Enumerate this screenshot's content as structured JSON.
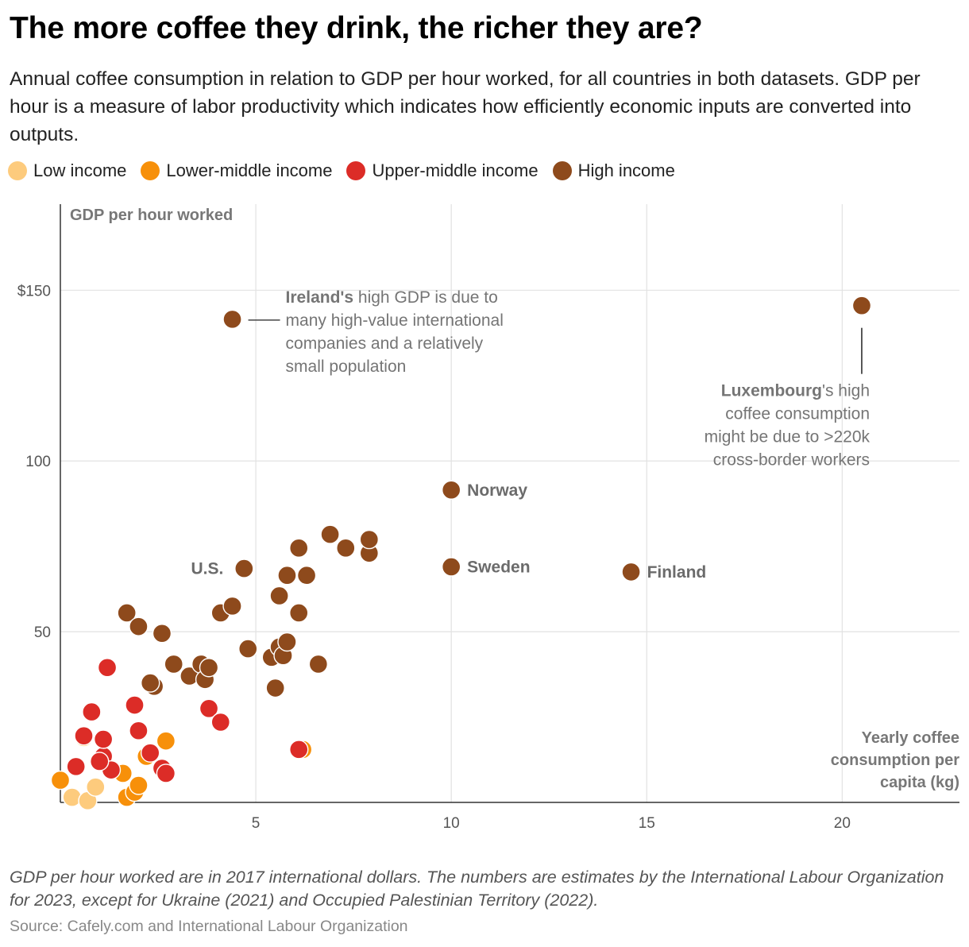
{
  "header": {
    "title": "The more coffee they drink, the richer they are?",
    "subtitle": "Annual coffee consumption in relation to GDP per hour worked, for all countries in both datasets. GDP per hour is a measure of labor productivity which indicates how efficiently economic inputs are converted into outputs."
  },
  "legend": [
    {
      "key": "low",
      "label": "Low income",
      "color": "#fdcb7d"
    },
    {
      "key": "lower_middle",
      "label": "Lower-middle income",
      "color": "#f7900a"
    },
    {
      "key": "upper_middle",
      "label": "Upper-middle income",
      "color": "#dc2c27"
    },
    {
      "key": "high",
      "label": "High income",
      "color": "#8e4a1c"
    }
  ],
  "chart_data": {
    "type": "scatter",
    "title": "The more coffee they drink, the richer they are?",
    "xlabel": "Yearly coffee consumption per capita (kg)",
    "ylabel": "GDP per hour worked",
    "xlim": [
      0,
      23
    ],
    "ylim": [
      0,
      178
    ],
    "x_ticks": [
      5,
      10,
      15,
      20
    ],
    "y_ticks": [
      50,
      100,
      150
    ],
    "y_tick_labels": [
      "50",
      "100",
      "$150"
    ],
    "grid": true,
    "series": [
      {
        "name": "Low income",
        "key": "low",
        "points": [
          [
            0.3,
            1.5
          ],
          [
            0.7,
            0.5
          ],
          [
            0.9,
            4.5
          ],
          [
            0.6,
            19
          ]
        ]
      },
      {
        "name": "Lower-middle income",
        "key": "lower_middle",
        "points": [
          [
            0.0,
            6.5
          ],
          [
            1.6,
            8.5
          ],
          [
            1.7,
            1.5
          ],
          [
            1.9,
            3.0
          ],
          [
            2.0,
            5.0
          ],
          [
            2.2,
            13.5
          ],
          [
            2.7,
            18.0
          ],
          [
            6.2,
            15.5
          ]
        ]
      },
      {
        "name": "Upper-middle income",
        "key": "upper_middle",
        "points": [
          [
            0.4,
            10.5
          ],
          [
            0.6,
            19.5
          ],
          [
            0.8,
            26.5
          ],
          [
            1.1,
            13.5
          ],
          [
            1.1,
            18.5
          ],
          [
            1.2,
            39.5
          ],
          [
            1.3,
            9.5
          ],
          [
            1.0,
            12.0
          ],
          [
            1.9,
            28.5
          ],
          [
            2.0,
            21.0
          ],
          [
            2.3,
            14.5
          ],
          [
            2.6,
            10.0
          ],
          [
            2.7,
            8.5
          ],
          [
            3.8,
            27.5
          ],
          [
            4.1,
            23.5
          ],
          [
            6.1,
            15.5
          ]
        ]
      },
      {
        "name": "High income",
        "key": "high",
        "points": [
          [
            1.7,
            55.5
          ],
          [
            2.0,
            51.5
          ],
          [
            2.4,
            34.0
          ],
          [
            2.3,
            35.0
          ],
          [
            2.6,
            49.5
          ],
          [
            2.9,
            40.5
          ],
          [
            3.3,
            37.0
          ],
          [
            3.6,
            40.5
          ],
          [
            3.7,
            36.0
          ],
          [
            3.8,
            39.5
          ],
          [
            4.1,
            55.5
          ],
          [
            4.4,
            57.5
          ],
          [
            4.7,
            68.5
          ],
          [
            4.8,
            45.0
          ],
          [
            5.4,
            42.5
          ],
          [
            5.5,
            33.5
          ],
          [
            5.6,
            45.5
          ],
          [
            5.6,
            60.5
          ],
          [
            5.7,
            43.0
          ],
          [
            5.8,
            66.5
          ],
          [
            5.8,
            47.0
          ],
          [
            6.1,
            74.5
          ],
          [
            6.1,
            55.5
          ],
          [
            6.3,
            66.5
          ],
          [
            6.6,
            40.5
          ],
          [
            6.9,
            78.5
          ],
          [
            7.3,
            74.5
          ],
          [
            7.9,
            73.0
          ],
          [
            7.9,
            77.0
          ],
          [
            4.4,
            141.5
          ],
          [
            20.5,
            145.5
          ],
          [
            10.0,
            91.5
          ],
          [
            10.0,
            69.0
          ],
          [
            14.6,
            67.5
          ]
        ]
      }
    ],
    "labeled_points": [
      {
        "label": "U.S.",
        "x": 4.7,
        "y": 68.5,
        "side": "left"
      },
      {
        "label": "Norway",
        "x": 10.0,
        "y": 91.5,
        "side": "right"
      },
      {
        "label": "Sweden",
        "x": 10.0,
        "y": 69.0,
        "side": "right"
      },
      {
        "label": "Finland",
        "x": 14.6,
        "y": 67.5,
        "side": "right"
      }
    ],
    "annotations": {
      "ireland": {
        "point": [
          4.4,
          141.5
        ],
        "bold": "Ireland's",
        "lines": [
          " high GDP is due to",
          "many high-value international",
          "companies and a relatively",
          "small population"
        ]
      },
      "luxembourg": {
        "point": [
          20.5,
          145.5
        ],
        "bold": "Luxembourg",
        "lines": [
          "'s high",
          "coffee consumption",
          "might be due to >220k",
          "cross-border workers"
        ]
      }
    }
  },
  "footer": {
    "note": "GDP per hour worked are in 2017 international dollars. The numbers are estimates by the International Labour Organization for 2023, except for Ukraine (2021) and Occupied Palestinian Territory (2022).",
    "source": "Source: Cafely.com and International Labour Organization"
  }
}
